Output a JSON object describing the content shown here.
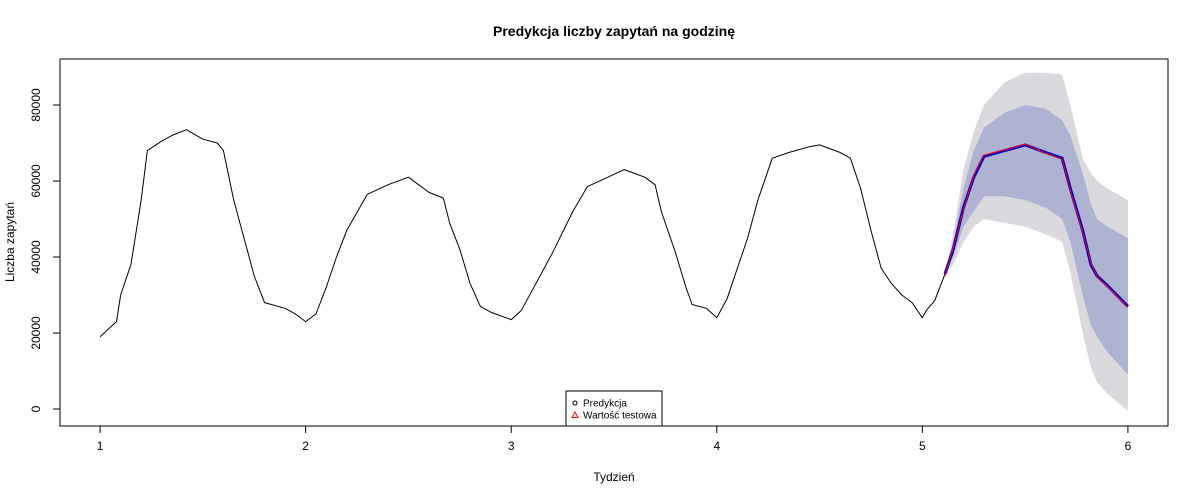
{
  "chart_data": {
    "type": "line",
    "title": "Predykcja liczby zapytań na godzinę",
    "xlabel": "Tydzień",
    "ylabel": "Liczba zapytań",
    "xlim": [
      0.805,
      6.195
    ],
    "ylim": [
      -4474,
      92105
    ],
    "xticks": [
      1,
      2,
      3,
      4,
      5,
      6
    ],
    "yticks": [
      0,
      20000,
      40000,
      60000,
      80000
    ],
    "bands": [
      {
        "color": "#d9d9de",
        "x": [
          5.11,
          5.15,
          5.2,
          5.25,
          5.3,
          5.4,
          5.5,
          5.6,
          5.68,
          5.72,
          5.78,
          5.82,
          5.85,
          5.9,
          6.0
        ],
        "lower": [
          35500,
          38000,
          44000,
          48000,
          50000,
          49000,
          48000,
          46000,
          44000,
          36000,
          20000,
          11000,
          7000,
          4000,
          -500
        ],
        "upper": [
          35500,
          46000,
          63000,
          73000,
          80000,
          86000,
          88500,
          88500,
          88000,
          80000,
          66000,
          62000,
          60000,
          58000,
          55000
        ]
      },
      {
        "color": "#adb3d1",
        "x": [
          5.11,
          5.15,
          5.2,
          5.25,
          5.3,
          5.4,
          5.5,
          5.6,
          5.68,
          5.72,
          5.78,
          5.82,
          5.85,
          5.9,
          6.0
        ],
        "lower": [
          35500,
          40000,
          48000,
          52000,
          56000,
          56000,
          55000,
          53000,
          50000,
          44000,
          30000,
          22000,
          19000,
          15000,
          9000
        ],
        "upper": [
          35500,
          44000,
          58000,
          68000,
          74000,
          78000,
          80000,
          79000,
          76000,
          72000,
          62000,
          54000,
          50000,
          48000,
          45000
        ]
      }
    ],
    "series": [
      {
        "color": "#000000",
        "width": 1,
        "x": [
          1,
          1.05,
          1.08,
          1.1,
          1.15,
          1.2,
          1.23,
          1.3,
          1.35,
          1.42,
          1.5,
          1.57,
          1.6,
          1.65,
          1.7,
          1.75,
          1.8,
          1.9,
          1.95,
          2.0,
          2.05,
          2.1,
          2.15,
          2.2,
          2.3,
          2.4,
          2.5,
          2.55,
          2.6,
          2.67,
          2.7,
          2.75,
          2.8,
          2.85,
          2.9,
          3.0,
          3.05,
          3.1,
          3.2,
          3.3,
          3.37,
          3.45,
          3.55,
          3.65,
          3.7,
          3.73,
          3.8,
          3.85,
          3.88,
          3.95,
          4.0,
          4.05,
          4.1,
          4.15,
          4.2,
          4.27,
          4.35,
          4.45,
          4.5,
          4.6,
          4.65,
          4.7,
          4.75,
          4.8,
          4.85,
          4.9,
          4.95,
          5.0,
          5.02,
          5.06,
          5.11
        ],
        "values": [
          19000,
          21500,
          23000,
          30000,
          38000,
          55000,
          68000,
          70500,
          72000,
          73500,
          71000,
          70000,
          68000,
          55000,
          45000,
          35000,
          28000,
          26500,
          25000,
          23000,
          25000,
          32000,
          40000,
          47000,
          56500,
          59000,
          61000,
          59000,
          57000,
          55500,
          49000,
          42000,
          33000,
          27000,
          25500,
          23500,
          26000,
          31000,
          41000,
          52000,
          58500,
          60500,
          63000,
          61000,
          59000,
          52000,
          41000,
          32000,
          27500,
          26500,
          24000,
          29000,
          37000,
          45000,
          55000,
          66000,
          67500,
          69000,
          69500,
          67500,
          66000,
          58000,
          47000,
          37000,
          33000,
          30000,
          28000,
          24000,
          26000,
          28500,
          35500
        ]
      },
      {
        "name": "Predykcja",
        "color": "#0000cd",
        "width": 3,
        "marker": "circle",
        "marker_color": "#000000",
        "x": [
          5.11,
          5.15,
          5.2,
          5.25,
          5.3,
          5.4,
          5.5,
          5.6,
          5.68,
          5.72,
          5.78,
          5.82,
          5.85,
          5.9,
          6.0
        ],
        "values": [
          35500,
          42000,
          53000,
          61000,
          66500,
          68000,
          69500,
          67500,
          66000,
          58000,
          47000,
          38000,
          35000,
          32500,
          27000
        ]
      },
      {
        "name": "Wartość testowa",
        "color": "#ff0000",
        "width": 1,
        "marker": "triangle",
        "marker_color": "#ff0000",
        "x": [
          5.11,
          5.15,
          5.2,
          5.25,
          5.3,
          5.4,
          5.5,
          5.6,
          5.68,
          5.72,
          5.78,
          5.82,
          5.85,
          5.9,
          6.0
        ],
        "values": [
          35000,
          42500,
          52500,
          61500,
          66800,
          68200,
          69700,
          67300,
          65800,
          57500,
          46500,
          38500,
          34800,
          32300,
          26800
        ]
      }
    ]
  }
}
